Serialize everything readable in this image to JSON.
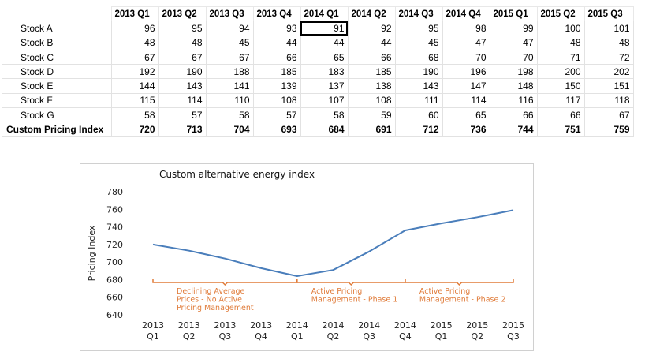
{
  "table": {
    "columns": [
      "2013 Q1",
      "2013 Q2",
      "2013 Q3",
      "2013 Q4",
      "2014 Q1",
      "2014 Q2",
      "2014 Q3",
      "2014 Q4",
      "2015 Q1",
      "2015 Q2",
      "2015 Q3"
    ],
    "rows": [
      {
        "label": "Stock A",
        "values": [
          96,
          95,
          94,
          93,
          91,
          92,
          95,
          98,
          99,
          100,
          101
        ]
      },
      {
        "label": "Stock B",
        "values": [
          48,
          48,
          45,
          44,
          44,
          44,
          45,
          47,
          47,
          48,
          48
        ]
      },
      {
        "label": "Stock C",
        "values": [
          67,
          67,
          67,
          66,
          65,
          66,
          68,
          70,
          70,
          71,
          72
        ]
      },
      {
        "label": "Stock D",
        "values": [
          192,
          190,
          188,
          185,
          183,
          185,
          190,
          196,
          198,
          200,
          202
        ]
      },
      {
        "label": "Stock E",
        "values": [
          144,
          143,
          141,
          139,
          137,
          138,
          143,
          147,
          148,
          150,
          151
        ]
      },
      {
        "label": "Stock F",
        "values": [
          115,
          114,
          110,
          108,
          107,
          108,
          111,
          114,
          116,
          117,
          118
        ]
      },
      {
        "label": "Stock G",
        "values": [
          58,
          57,
          58,
          57,
          58,
          59,
          60,
          65,
          66,
          66,
          67
        ]
      }
    ],
    "total": {
      "label": "Custom Pricing Index",
      "values": [
        720,
        713,
        704,
        693,
        684,
        691,
        712,
        736,
        744,
        751,
        759
      ]
    },
    "selected_cell": {
      "row": 0,
      "col": 4
    }
  },
  "chart_data": {
    "type": "line",
    "title": "Custom alternative energy index",
    "ylabel": "Pricing Index",
    "xlabel": "",
    "categories": [
      [
        "2013",
        "Q1"
      ],
      [
        "2013",
        "Q2"
      ],
      [
        "2013",
        "Q3"
      ],
      [
        "2013",
        "Q4"
      ],
      [
        "2014",
        "Q1"
      ],
      [
        "2014",
        "Q2"
      ],
      [
        "2014",
        "Q3"
      ],
      [
        "2014",
        "Q4"
      ],
      [
        "2015",
        "Q1"
      ],
      [
        "2015",
        "Q2"
      ],
      [
        "2015",
        "Q3"
      ]
    ],
    "series": [
      {
        "values": [
          720,
          713,
          704,
          693,
          684,
          691,
          712,
          736,
          744,
          751,
          759
        ]
      }
    ],
    "ylim": [
      640,
      780
    ],
    "yticks": [
      640,
      660,
      680,
      700,
      720,
      740,
      760,
      780
    ],
    "grid": false,
    "line_color": "#4A7EBB",
    "annotation_color": "#E07B39",
    "annotations": [
      {
        "from": 0,
        "to": 4,
        "lines": [
          "Declining Average",
          "Prices - No Active",
          "Pricing Management"
        ]
      },
      {
        "from": 4,
        "to": 7,
        "lines": [
          "Active Pricing",
          "Management - Phase 1"
        ]
      },
      {
        "from": 7,
        "to": 10,
        "lines": [
          "Active Pricing",
          "Management - Phase 2"
        ]
      }
    ]
  }
}
